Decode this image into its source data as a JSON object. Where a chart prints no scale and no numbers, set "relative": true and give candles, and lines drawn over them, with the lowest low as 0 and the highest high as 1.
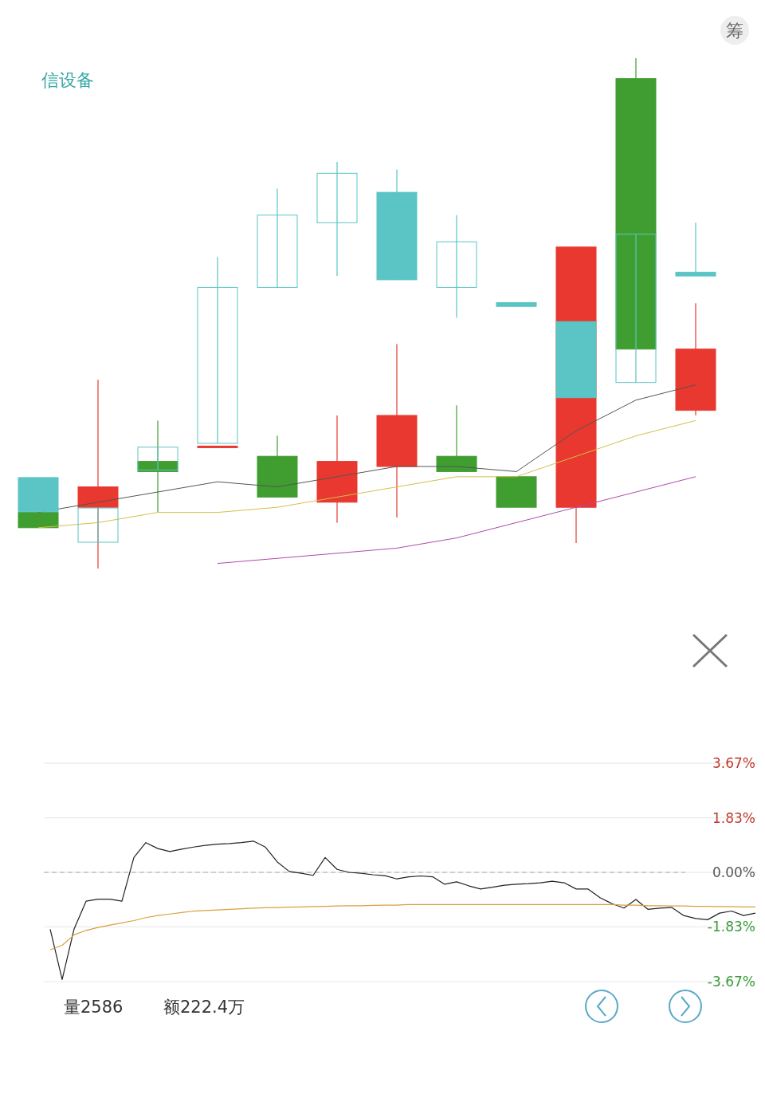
{
  "chart_data": [
    {
      "type": "candlestick",
      "title": "信设备",
      "annotations": [
        "筹"
      ],
      "relative": true,
      "categories": [
        null,
        null,
        null,
        null,
        null,
        null,
        null,
        null,
        null,
        null,
        null,
        null
      ],
      "series": [
        {
          "type": "line",
          "color": "#555555",
          "values": [
            0.11,
            0.13,
            0.15,
            0.17,
            0.16,
            0.18,
            0.2,
            0.2,
            0.19,
            0.27,
            0.33,
            0.36
          ]
        },
        {
          "type": "line",
          "color": "#d4c04a",
          "values": [
            0.08,
            0.09,
            0.11,
            0.11,
            0.12,
            0.14,
            0.16,
            0.18,
            0.18,
            0.22,
            0.26,
            0.29
          ]
        },
        {
          "type": "line",
          "color": "#b04aa8",
          "values": [
            null,
            null,
            null,
            0.01,
            0.02,
            0.03,
            0.04,
            0.06,
            0.09,
            0.12,
            0.15,
            0.18
          ]
        },
        {
          "colors": [
            "#3f9e2f",
            "#e8382f",
            "#3f9e2f",
            "#e8382f",
            "#3f9e2f",
            "#e8382f",
            "#e8382f",
            "#3f9e2f",
            "#3f9e2f",
            "#e8382f",
            "#3f9e2f",
            "#e8382f"
          ],
          "ohlc": [
            [
              0.11,
              0.11,
              0.08,
              0.08
            ],
            [
              0.16,
              0.37,
              0,
              0.12
            ],
            [
              0.21,
              0.29,
              0.11,
              0.19
            ],
            [
              0.24,
              0.24,
              0.24,
              0.24
            ],
            [
              0.22,
              0.26,
              0.14,
              0.14
            ],
            [
              0.21,
              0.3,
              0.09,
              0.13
            ],
            [
              0.3,
              0.44,
              0.1,
              0.2
            ],
            [
              0.22,
              0.32,
              0.19,
              0.19
            ],
            [
              0.18,
              0.18,
              0.12,
              0.12
            ],
            [
              0.63,
              0.63,
              0.05,
              0.12
            ],
            [
              0.96,
              1,
              0.43,
              0.43
            ],
            [
              0.43,
              0.52,
              0.3,
              0.31
            ]
          ]
        }
      ]
    },
    {
      "type": "candlestick",
      "relative": true,
      "categories": [
        null,
        null,
        null,
        null,
        null,
        null,
        null,
        null,
        null,
        null,
        null,
        null
      ],
      "series": [
        {
          "color": "#5bc4c4",
          "colors": [
            "#5bc4c4",
            null,
            null,
            null,
            null,
            null,
            "#5bc4c4",
            null,
            "#5bc4c4",
            "#5bc4c4",
            null,
            "#5bc4c4"
          ],
          "ohlc": [
            [
              0.17,
              0.17,
              0.08,
              0.08
            ],
            [
              0,
              0.09,
              0,
              0.09
            ],
            [
              0.19,
              0.25,
              0.19,
              0.25
            ],
            [
              0.26,
              0.75,
              0.26,
              0.67
            ],
            [
              0.67,
              0.93,
              0.67,
              0.86
            ],
            [
              0.84,
              1,
              0.7,
              0.97
            ],
            [
              0.92,
              0.98,
              0.69,
              0.69
            ],
            [
              0.67,
              0.86,
              0.59,
              0.79
            ],
            [
              0.63,
              0.63,
              0.62,
              0.62
            ],
            [
              0.58,
              0.58,
              0.38,
              0.38
            ],
            [
              0.42,
              0.81,
              0.42,
              0.81
            ],
            [
              0.71,
              0.84,
              0.7,
              0.7
            ]
          ]
        }
      ]
    },
    {
      "type": "line",
      "annotations": [
        "量2586",
        "额222.4万"
      ],
      "categories": [
        null,
        null,
        null,
        null,
        null,
        null,
        null,
        null,
        null,
        null,
        null,
        null,
        null,
        null,
        null,
        null,
        null,
        null,
        null,
        null,
        null,
        null,
        null,
        null,
        null,
        null,
        null,
        null,
        null,
        null,
        null,
        null,
        null,
        null,
        null,
        null,
        null,
        null,
        null,
        null,
        null,
        null,
        null,
        null,
        null,
        null,
        null,
        null,
        null,
        null,
        null,
        null,
        null,
        null,
        null,
        null,
        null,
        null,
        null,
        null
      ],
      "ylim": [
        -3.67,
        3.67
      ],
      "yticks": [
        {
          "value": 3.67,
          "label": "3.67%"
        },
        {
          "value": 1.83,
          "label": "1.83%"
        },
        {
          "value": 0,
          "label": "0.00%"
        },
        {
          "value": -1.83,
          "label": "-1.83%"
        },
        {
          "value": -3.67,
          "label": "-3.67%"
        }
      ],
      "tick_labels": "y",
      "grid": "y",
      "series": [
        {
          "color": "#222222",
          "values": [
            -1.91,
            -3.6,
            -1.9,
            -0.97,
            -0.9,
            -0.9,
            -0.97,
            0.5,
            1.0,
            0.8,
            0.7,
            0.78,
            0.85,
            0.91,
            0.95,
            0.97,
            1.0,
            1.05,
            0.85,
            0.35,
            0.03,
            -0.03,
            -0.1,
            0.5,
            0.1,
            0.0,
            -0.03,
            -0.08,
            -0.11,
            -0.22,
            -0.15,
            -0.12,
            -0.15,
            -0.4,
            -0.32,
            -0.45,
            -0.56,
            -0.5,
            -0.43,
            -0.4,
            -0.38,
            -0.35,
            -0.3,
            -0.35,
            -0.56,
            -0.56,
            -0.85,
            -1.05,
            -1.2,
            -0.91,
            -1.24,
            -1.2,
            -1.18,
            -1.45,
            -1.55,
            -1.59,
            -1.37,
            -1.3,
            -1.45,
            -1.37
          ]
        },
        {
          "color": "#d9a040",
          "values": [
            -2.6,
            -2.45,
            -2.1,
            -1.95,
            -1.85,
            -1.77,
            -1.7,
            -1.62,
            -1.52,
            -1.45,
            -1.4,
            -1.35,
            -1.3,
            -1.28,
            -1.26,
            -1.24,
            -1.22,
            -1.2,
            -1.19,
            -1.18,
            -1.17,
            -1.16,
            -1.15,
            -1.14,
            -1.13,
            -1.12,
            -1.12,
            -1.11,
            -1.1,
            -1.1,
            -1.08,
            -1.08,
            -1.08,
            -1.08,
            -1.08,
            -1.08,
            -1.08,
            -1.08,
            -1.08,
            -1.08,
            -1.08,
            -1.08,
            -1.08,
            -1.08,
            -1.08,
            -1.08,
            -1.08,
            -1.08,
            -1.1,
            -1.1,
            -1.12,
            -1.12,
            -1.13,
            -1.13,
            -1.14,
            -1.14,
            -1.15,
            -1.15,
            -1.16,
            -1.16
          ]
        }
      ],
      "ref_lines": [
        {
          "axis": "y",
          "value": 0,
          "color": "#aaaaaa",
          "line_style": "dashed"
        }
      ]
    }
  ]
}
